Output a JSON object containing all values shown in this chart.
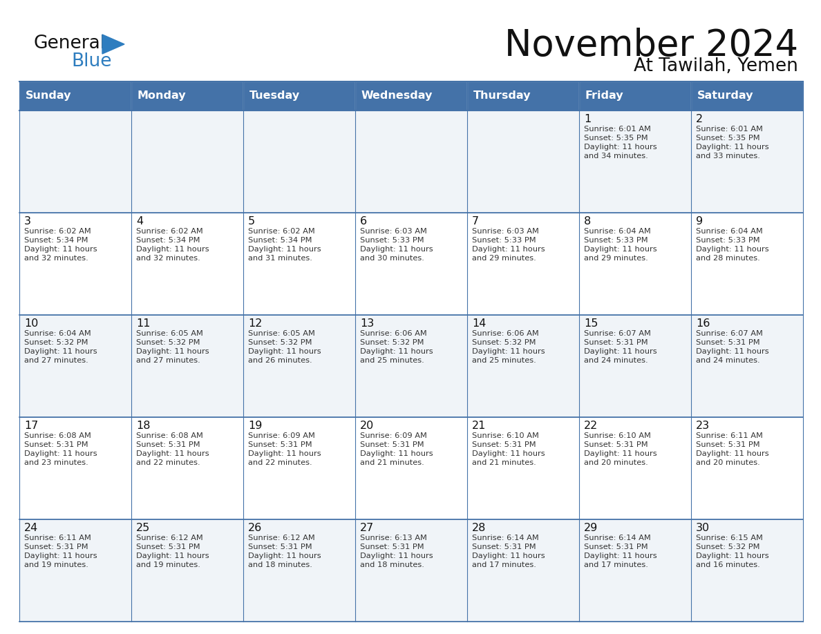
{
  "title": "November 2024",
  "subtitle": "At Tawilah, Yemen",
  "days_of_week": [
    "Sunday",
    "Monday",
    "Tuesday",
    "Wednesday",
    "Thursday",
    "Friday",
    "Saturday"
  ],
  "header_bg": "#4472a8",
  "header_text": "#ffffff",
  "cell_bg_light": "#f0f4f8",
  "cell_bg_white": "#ffffff",
  "cell_border": "#4472a8",
  "title_color": "#111111",
  "logo_general_color": "#111111",
  "logo_blue_color": "#2e7dbf",
  "calendar_data": [
    [
      null,
      null,
      null,
      null,
      null,
      {
        "day": 1,
        "sunrise": "6:01 AM",
        "sunset": "5:35 PM",
        "daylight_hrs": "11 hours",
        "daylight_min": "and 34 minutes."
      },
      {
        "day": 2,
        "sunrise": "6:01 AM",
        "sunset": "5:35 PM",
        "daylight_hrs": "11 hours",
        "daylight_min": "and 33 minutes."
      }
    ],
    [
      {
        "day": 3,
        "sunrise": "6:02 AM",
        "sunset": "5:34 PM",
        "daylight_hrs": "11 hours",
        "daylight_min": "and 32 minutes."
      },
      {
        "day": 4,
        "sunrise": "6:02 AM",
        "sunset": "5:34 PM",
        "daylight_hrs": "11 hours",
        "daylight_min": "and 32 minutes."
      },
      {
        "day": 5,
        "sunrise": "6:02 AM",
        "sunset": "5:34 PM",
        "daylight_hrs": "11 hours",
        "daylight_min": "and 31 minutes."
      },
      {
        "day": 6,
        "sunrise": "6:03 AM",
        "sunset": "5:33 PM",
        "daylight_hrs": "11 hours",
        "daylight_min": "and 30 minutes."
      },
      {
        "day": 7,
        "sunrise": "6:03 AM",
        "sunset": "5:33 PM",
        "daylight_hrs": "11 hours",
        "daylight_min": "and 29 minutes."
      },
      {
        "day": 8,
        "sunrise": "6:04 AM",
        "sunset": "5:33 PM",
        "daylight_hrs": "11 hours",
        "daylight_min": "and 29 minutes."
      },
      {
        "day": 9,
        "sunrise": "6:04 AM",
        "sunset": "5:33 PM",
        "daylight_hrs": "11 hours",
        "daylight_min": "and 28 minutes."
      }
    ],
    [
      {
        "day": 10,
        "sunrise": "6:04 AM",
        "sunset": "5:32 PM",
        "daylight_hrs": "11 hours",
        "daylight_min": "and 27 minutes."
      },
      {
        "day": 11,
        "sunrise": "6:05 AM",
        "sunset": "5:32 PM",
        "daylight_hrs": "11 hours",
        "daylight_min": "and 27 minutes."
      },
      {
        "day": 12,
        "sunrise": "6:05 AM",
        "sunset": "5:32 PM",
        "daylight_hrs": "11 hours",
        "daylight_min": "and 26 minutes."
      },
      {
        "day": 13,
        "sunrise": "6:06 AM",
        "sunset": "5:32 PM",
        "daylight_hrs": "11 hours",
        "daylight_min": "and 25 minutes."
      },
      {
        "day": 14,
        "sunrise": "6:06 AM",
        "sunset": "5:32 PM",
        "daylight_hrs": "11 hours",
        "daylight_min": "and 25 minutes."
      },
      {
        "day": 15,
        "sunrise": "6:07 AM",
        "sunset": "5:31 PM",
        "daylight_hrs": "11 hours",
        "daylight_min": "and 24 minutes."
      },
      {
        "day": 16,
        "sunrise": "6:07 AM",
        "sunset": "5:31 PM",
        "daylight_hrs": "11 hours",
        "daylight_min": "and 24 minutes."
      }
    ],
    [
      {
        "day": 17,
        "sunrise": "6:08 AM",
        "sunset": "5:31 PM",
        "daylight_hrs": "11 hours",
        "daylight_min": "and 23 minutes."
      },
      {
        "day": 18,
        "sunrise": "6:08 AM",
        "sunset": "5:31 PM",
        "daylight_hrs": "11 hours",
        "daylight_min": "and 22 minutes."
      },
      {
        "day": 19,
        "sunrise": "6:09 AM",
        "sunset": "5:31 PM",
        "daylight_hrs": "11 hours",
        "daylight_min": "and 22 minutes."
      },
      {
        "day": 20,
        "sunrise": "6:09 AM",
        "sunset": "5:31 PM",
        "daylight_hrs": "11 hours",
        "daylight_min": "and 21 minutes."
      },
      {
        "day": 21,
        "sunrise": "6:10 AM",
        "sunset": "5:31 PM",
        "daylight_hrs": "11 hours",
        "daylight_min": "and 21 minutes."
      },
      {
        "day": 22,
        "sunrise": "6:10 AM",
        "sunset": "5:31 PM",
        "daylight_hrs": "11 hours",
        "daylight_min": "and 20 minutes."
      },
      {
        "day": 23,
        "sunrise": "6:11 AM",
        "sunset": "5:31 PM",
        "daylight_hrs": "11 hours",
        "daylight_min": "and 20 minutes."
      }
    ],
    [
      {
        "day": 24,
        "sunrise": "6:11 AM",
        "sunset": "5:31 PM",
        "daylight_hrs": "11 hours",
        "daylight_min": "and 19 minutes."
      },
      {
        "day": 25,
        "sunrise": "6:12 AM",
        "sunset": "5:31 PM",
        "daylight_hrs": "11 hours",
        "daylight_min": "and 19 minutes."
      },
      {
        "day": 26,
        "sunrise": "6:12 AM",
        "sunset": "5:31 PM",
        "daylight_hrs": "11 hours",
        "daylight_min": "and 18 minutes."
      },
      {
        "day": 27,
        "sunrise": "6:13 AM",
        "sunset": "5:31 PM",
        "daylight_hrs": "11 hours",
        "daylight_min": "and 18 minutes."
      },
      {
        "day": 28,
        "sunrise": "6:14 AM",
        "sunset": "5:31 PM",
        "daylight_hrs": "11 hours",
        "daylight_min": "and 17 minutes."
      },
      {
        "day": 29,
        "sunrise": "6:14 AM",
        "sunset": "5:31 PM",
        "daylight_hrs": "11 hours",
        "daylight_min": "and 17 minutes."
      },
      {
        "day": 30,
        "sunrise": "6:15 AM",
        "sunset": "5:32 PM",
        "daylight_hrs": "11 hours",
        "daylight_min": "and 16 minutes."
      }
    ]
  ]
}
